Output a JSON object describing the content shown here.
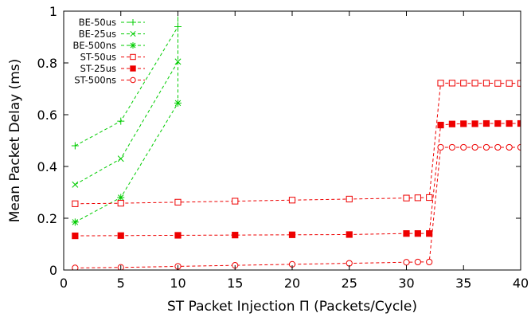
{
  "chart_data": {
    "type": "line",
    "title": "",
    "xlabel": "ST Packet Injection Π (Packets/Cycle)",
    "ylabel": "Mean Packet Delay (ms)",
    "xlim": [
      0,
      40
    ],
    "ylim": [
      0,
      1
    ],
    "xticks": [
      0,
      5,
      10,
      15,
      20,
      25,
      30,
      35,
      40
    ],
    "yticks": [
      0,
      0.2,
      0.4,
      0.6,
      0.8,
      1
    ],
    "xtick_labels": [
      "0",
      "5",
      "10",
      "15",
      "20",
      "25",
      "30",
      "35",
      "40"
    ],
    "ytick_labels": [
      "0",
      "0.2",
      "0.4",
      "0.6",
      "0.8",
      "1"
    ],
    "grid": false,
    "legend_position": "top-left",
    "series": [
      {
        "name": "BE-50us",
        "color": "#00cc00",
        "marker": "plus",
        "x": [
          1,
          5,
          10,
          10
        ],
        "y": [
          0.48,
          0.575,
          0.94,
          1.0
        ]
      },
      {
        "name": "BE-25us",
        "color": "#00cc00",
        "marker": "cross",
        "x": [
          1,
          5,
          10,
          10
        ],
        "y": [
          0.33,
          0.43,
          0.805,
          1.0
        ]
      },
      {
        "name": "BE-500ns",
        "color": "#00cc00",
        "marker": "star",
        "x": [
          1,
          5,
          10,
          10
        ],
        "y": [
          0.185,
          0.28,
          0.645,
          1.0
        ]
      },
      {
        "name": "ST-50us",
        "color": "#ee0000",
        "marker": "open-square",
        "x": [
          1,
          5,
          10,
          15,
          20,
          25,
          30,
          31,
          32,
          33,
          34,
          35,
          36,
          37,
          38,
          39,
          40
        ],
        "y": [
          0.256,
          0.258,
          0.262,
          0.266,
          0.27,
          0.274,
          0.278,
          0.279,
          0.28,
          0.722,
          0.722,
          0.722,
          0.722,
          0.722,
          0.721,
          0.721,
          0.721
        ]
      },
      {
        "name": "ST-25us",
        "color": "#ee0000",
        "marker": "filled-square",
        "x": [
          1,
          5,
          10,
          15,
          20,
          25,
          30,
          31,
          32,
          33,
          34,
          35,
          36,
          37,
          38,
          39,
          40
        ],
        "y": [
          0.132,
          0.133,
          0.134,
          0.135,
          0.136,
          0.137,
          0.141,
          0.141,
          0.141,
          0.56,
          0.564,
          0.565,
          0.565,
          0.566,
          0.566,
          0.566,
          0.566
        ]
      },
      {
        "name": "ST-500ns",
        "color": "#ee0000",
        "marker": "open-circle",
        "x": [
          1,
          5,
          10,
          15,
          20,
          25,
          30,
          31,
          32,
          33,
          34,
          35,
          36,
          37,
          38,
          39,
          40
        ],
        "y": [
          0.008,
          0.01,
          0.014,
          0.018,
          0.022,
          0.026,
          0.03,
          0.031,
          0.031,
          0.474,
          0.474,
          0.474,
          0.474,
          0.474,
          0.474,
          0.474,
          0.474
        ]
      }
    ]
  }
}
